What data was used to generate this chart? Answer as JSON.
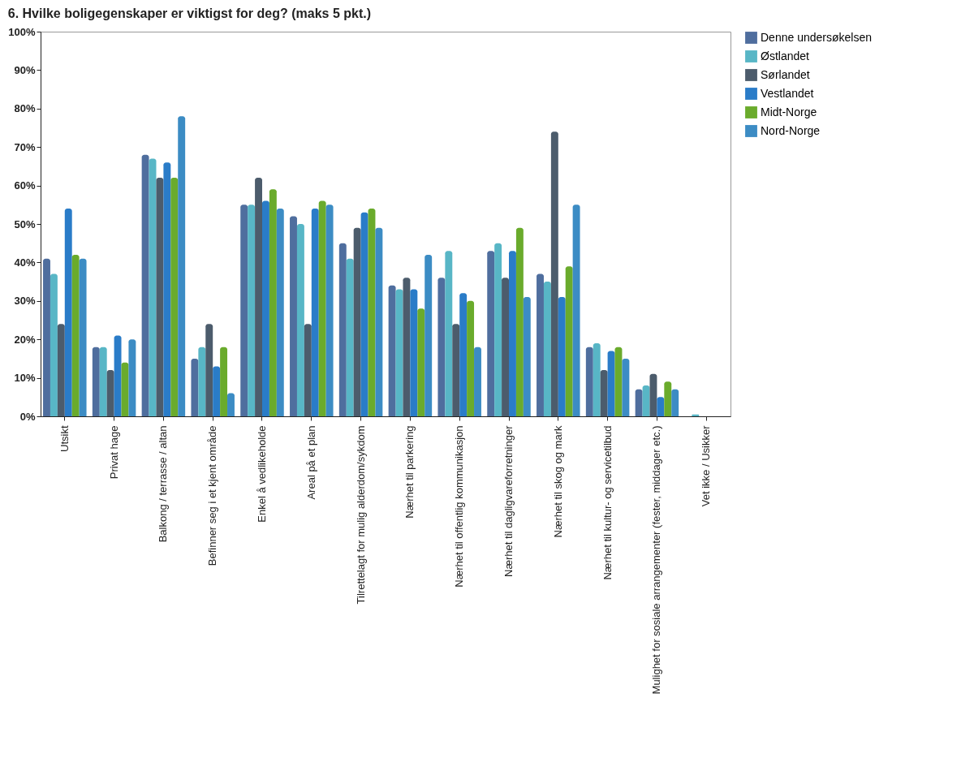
{
  "chart_data": {
    "type": "bar",
    "title": "6. Hvilke boligegenskaper er viktigst for deg? (maks 5 pkt.)",
    "categories": [
      "Utsikt",
      "Privat hage",
      "Balkong / terrasse / altan",
      "Befinner seg i et kjent område",
      "Enkel å vedlikeholde",
      "Areal på et plan",
      "Tilrettelagt for mulig alderdom/sykdom",
      "Nærhet til parkering",
      "Nærhet til offentlig kommunikasjon",
      "Nærhet til dagligvareforretninger",
      "Nærhet til skog og mark",
      "Nærhet til kultur- og servicetilbud",
      "Mulighet for sosiale arrangementer (fester, middager etc.)",
      "Vet ikke / Usikker"
    ],
    "series": [
      {
        "name": "Denne undersøkelsen",
        "color": "#4f6e9e",
        "values": [
          41,
          18,
          68,
          15,
          55,
          52,
          45,
          34,
          36,
          43,
          37,
          18,
          7,
          0
        ]
      },
      {
        "name": "Østlandet",
        "color": "#58b6c6",
        "values": [
          37,
          18,
          67,
          18,
          55,
          50,
          41,
          33,
          43,
          45,
          35,
          19,
          8,
          0.5
        ]
      },
      {
        "name": "Sørlandet",
        "color": "#4c5c6c",
        "values": [
          24,
          12,
          62,
          24,
          62,
          24,
          49,
          36,
          24,
          36,
          74,
          12,
          11,
          0
        ]
      },
      {
        "name": "Vestlandet",
        "color": "#2a7cc8",
        "values": [
          54,
          21,
          66,
          13,
          56,
          54,
          53,
          33,
          32,
          43,
          31,
          17,
          5,
          0
        ]
      },
      {
        "name": "Midt-Norge",
        "color": "#6aab2c",
        "values": [
          42,
          14,
          62,
          18,
          59,
          56,
          54,
          28,
          30,
          49,
          39,
          18,
          9,
          0
        ]
      },
      {
        "name": "Nord-Norge",
        "color": "#3c8cc4",
        "values": [
          41,
          20,
          78,
          6,
          54,
          55,
          49,
          42,
          18,
          31,
          55,
          15,
          7,
          0
        ]
      }
    ],
    "ylim": [
      0,
      100
    ],
    "yticks": [
      {
        "value": 0,
        "label": "0%"
      },
      {
        "value": 10,
        "label": "10%"
      },
      {
        "value": 20,
        "label": "20%"
      },
      {
        "value": 30,
        "label": "30%"
      },
      {
        "value": 40,
        "label": "40%"
      },
      {
        "value": 50,
        "label": "50%"
      },
      {
        "value": 60,
        "label": "60%"
      },
      {
        "value": 70,
        "label": "70%"
      },
      {
        "value": 80,
        "label": "80%"
      },
      {
        "value": 90,
        "label": "90%"
      },
      {
        "value": 100,
        "label": "100%"
      }
    ],
    "grid": false,
    "legend": "top right"
  }
}
